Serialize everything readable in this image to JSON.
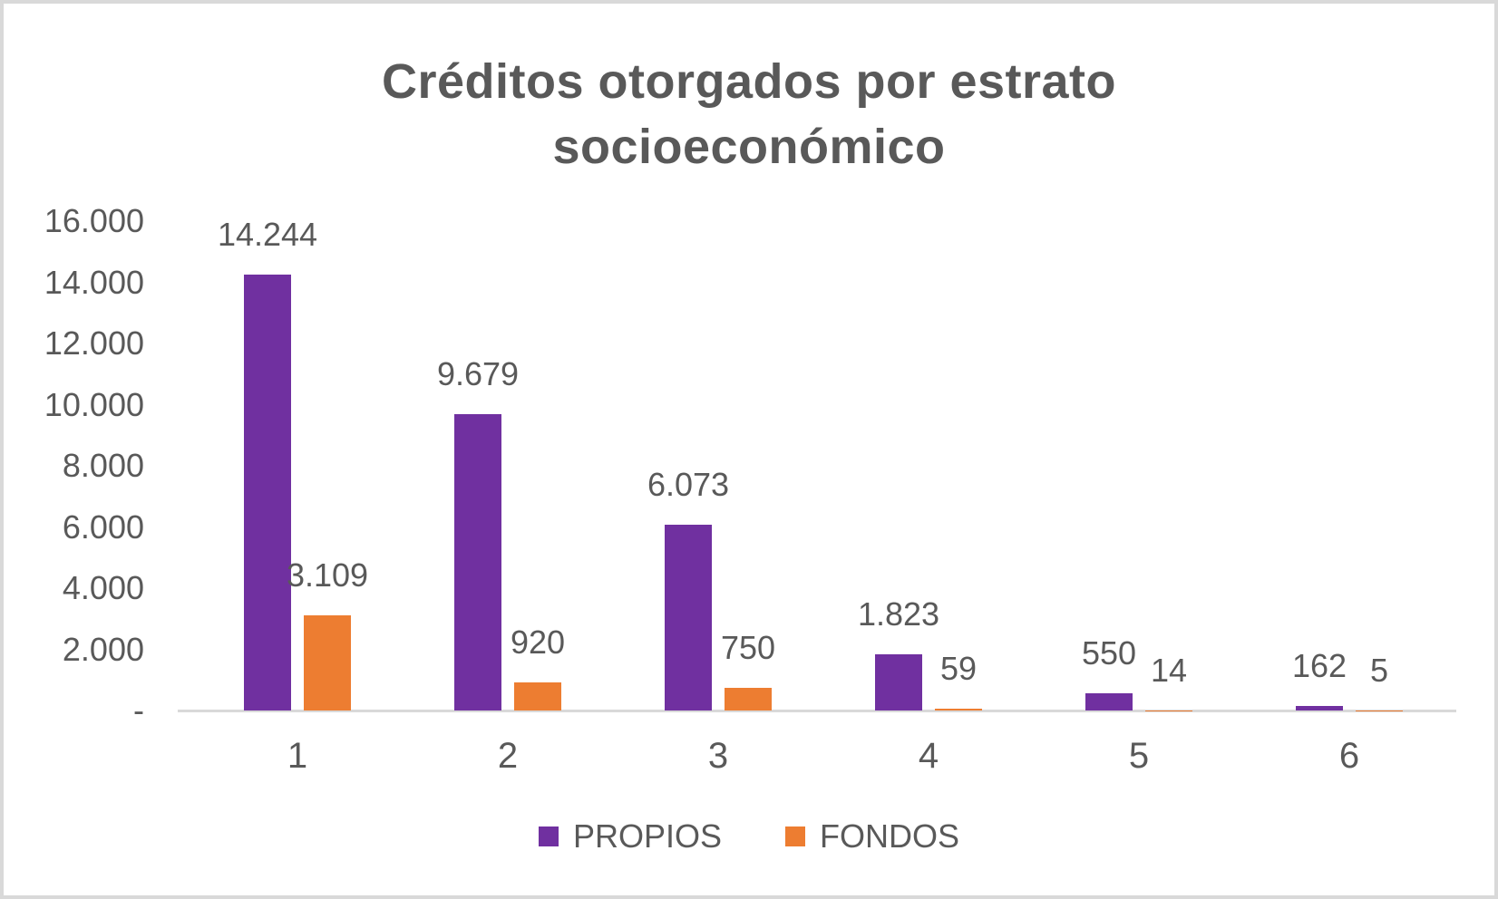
{
  "chart_data": {
    "type": "bar",
    "title": "Créditos otorgados por estrato socioeconómico",
    "xlabel": "",
    "ylabel": "",
    "categories": [
      "1",
      "2",
      "3",
      "4",
      "5",
      "6"
    ],
    "series": [
      {
        "name": "PROPIOS",
        "color": "#7030A0",
        "values": [
          14244,
          9679,
          6073,
          1823,
          550,
          162
        ],
        "value_labels": [
          "14.244",
          "9.679",
          "6.073",
          "1.823",
          "550",
          "162"
        ]
      },
      {
        "name": "FONDOS",
        "color": "#ED7D31",
        "values": [
          3109,
          920,
          750,
          59,
          14,
          5
        ],
        "value_labels": [
          "3.109",
          "920",
          "750",
          "59",
          "14",
          "5"
        ]
      }
    ],
    "ylim": [
      0,
      16000
    ],
    "y_ticks": [
      {
        "value": 16000,
        "label": "16.000"
      },
      {
        "value": 14000,
        "label": "14.000"
      },
      {
        "value": 12000,
        "label": "12.000"
      },
      {
        "value": 10000,
        "label": "10.000"
      },
      {
        "value": 8000,
        "label": "8.000"
      },
      {
        "value": 6000,
        "label": "6.000"
      },
      {
        "value": 4000,
        "label": "4.000"
      },
      {
        "value": 2000,
        "label": "2.000"
      },
      {
        "value": 0,
        "label": "-"
      }
    ],
    "grid": false,
    "legend_position": "bottom",
    "colors": {
      "text": "#595959",
      "axis_line": "#D9D9D9",
      "background": "#FFFFFF",
      "frame_border": "#D9D9D9"
    }
  }
}
